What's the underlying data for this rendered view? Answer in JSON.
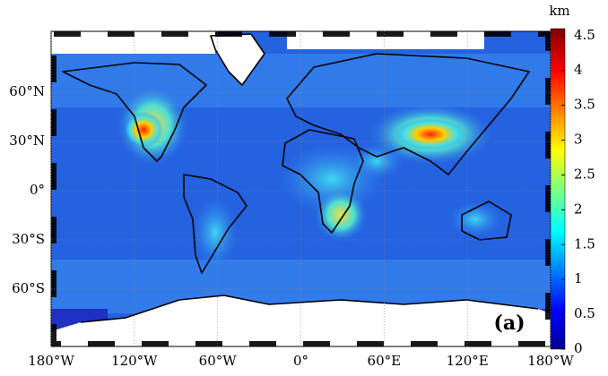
{
  "map": {
    "xlim": [
      -180,
      180
    ],
    "ylim": [
      -90,
      90
    ],
    "lon_ticks": [
      {
        "value": -180,
        "label": "180°W"
      },
      {
        "value": -120,
        "label": "120°W"
      },
      {
        "value": -60,
        "label": "60°W"
      },
      {
        "value": 0,
        "label": "0°"
      },
      {
        "value": 60,
        "label": "60°E"
      },
      {
        "value": 120,
        "label": "120°E"
      },
      {
        "value": 180,
        "label": "180°W"
      }
    ],
    "lat_ticks": [
      {
        "value": 60,
        "label": "60°N"
      },
      {
        "value": 30,
        "label": "30°N"
      },
      {
        "value": 0,
        "label": "0°"
      },
      {
        "value": -30,
        "label": "30°S"
      },
      {
        "value": -60,
        "label": "60°S"
      }
    ],
    "panel_label": "(a)"
  },
  "colorbar": {
    "unit": "km",
    "lim": [
      0,
      4.6
    ],
    "ticks": [
      0,
      0.5,
      1,
      1.5,
      2,
      2.5,
      3,
      3.5,
      4,
      4.5
    ]
  }
}
